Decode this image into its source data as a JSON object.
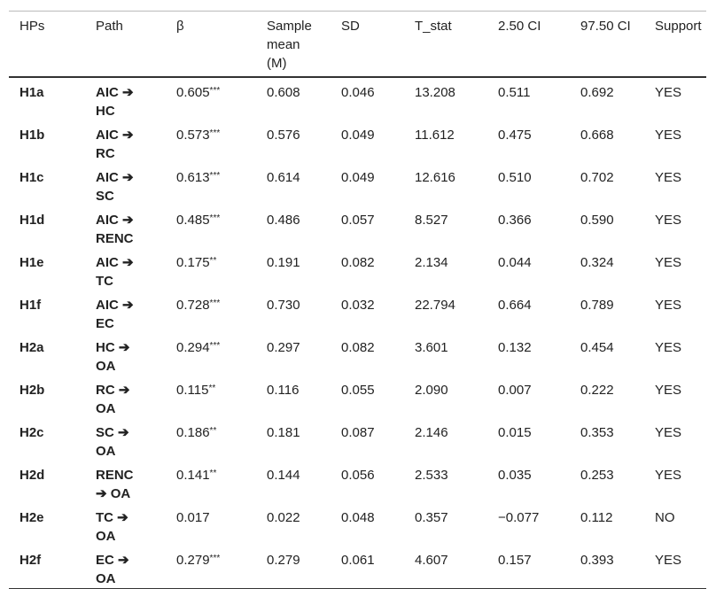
{
  "table": {
    "header": [
      "HPs",
      "Path",
      "β",
      "Sample mean (M)",
      "SD",
      "T_stat",
      "2.50 CI",
      "97.50 CI",
      "Support"
    ],
    "rows": [
      [
        "H1a",
        "AIC ➔ HC",
        {
          "value": "0.605",
          "sig": "***"
        },
        "0.608",
        "0.046",
        "13.208",
        "0.511",
        "0.692",
        "YES"
      ],
      [
        "H1b",
        "AIC ➔ RC",
        {
          "value": "0.573",
          "sig": "***"
        },
        "0.576",
        "0.049",
        "11.612",
        "0.475",
        "0.668",
        "YES"
      ],
      [
        "H1c",
        "AIC ➔ SC",
        {
          "value": "0.613",
          "sig": "***"
        },
        "0.614",
        "0.049",
        "12.616",
        "0.510",
        "0.702",
        "YES"
      ],
      [
        "H1d",
        "AIC ➔ RENC",
        {
          "value": "0.485",
          "sig": "***"
        },
        "0.486",
        "0.057",
        "8.527",
        "0.366",
        "0.590",
        "YES"
      ],
      [
        "H1e",
        "AIC ➔ TC",
        {
          "value": "0.175",
          "sig": "**"
        },
        "0.191",
        "0.082",
        "2.134",
        "0.044",
        "0.324",
        "YES"
      ],
      [
        "H1f",
        "AIC ➔ EC",
        {
          "value": "0.728",
          "sig": "***"
        },
        "0.730",
        "0.032",
        "22.794",
        "0.664",
        "0.789",
        "YES"
      ],
      [
        "H2a",
        "HC ➔ OA",
        {
          "value": "0.294",
          "sig": "***"
        },
        "0.297",
        "0.082",
        "3.601",
        "0.132",
        "0.454",
        "YES"
      ],
      [
        "H2b",
        "RC ➔ OA",
        {
          "value": "0.115",
          "sig": "**"
        },
        "0.116",
        "0.055",
        "2.090",
        "0.007",
        "0.222",
        "YES"
      ],
      [
        "H2c",
        "SC ➔ OA",
        {
          "value": "0.186",
          "sig": "**"
        },
        "0.181",
        "0.087",
        "2.146",
        "0.015",
        "0.353",
        "YES"
      ],
      [
        "H2d",
        "RENC ➔ OA",
        {
          "value": "0.141",
          "sig": "**"
        },
        "0.144",
        "0.056",
        "2.533",
        "0.035",
        "0.253",
        "YES"
      ],
      [
        "H2e",
        "TC ➔ OA",
        {
          "value": "0.017"
        },
        "0.022",
        "0.048",
        "0.357",
        "−0.077",
        "0.112",
        "NO"
      ],
      [
        "H2f",
        "EC ➔ OA",
        {
          "value": "0.279",
          "sig": "***"
        },
        "0.279",
        "0.061",
        "4.607",
        "0.157",
        "0.393",
        "YES"
      ]
    ]
  }
}
